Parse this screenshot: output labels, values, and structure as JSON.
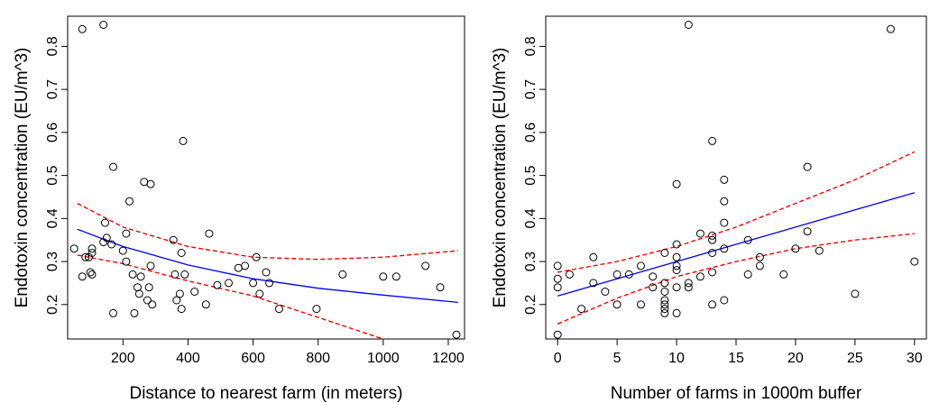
{
  "chart_data": [
    {
      "type": "scatter",
      "xlabel": "Distance to nearest farm (in meters)",
      "ylabel": "Endotoxin concentration (EU/m^3)",
      "xlim": [
        30,
        1250
      ],
      "ylim": [
        0.12,
        0.87
      ],
      "xticks": [
        200,
        400,
        600,
        800,
        1000,
        1200
      ],
      "yticks": [
        0.2,
        0.3,
        0.4,
        0.5,
        0.6,
        0.7,
        0.8
      ],
      "grid": false,
      "legend": "none",
      "colors": {
        "points": "#000000",
        "fit": "#0000ff",
        "ci": "#ff0000"
      },
      "points": [
        [
          75,
          0.84
        ],
        [
          140,
          0.85
        ],
        [
          50,
          0.33
        ],
        [
          75,
          0.265
        ],
        [
          85,
          0.31
        ],
        [
          95,
          0.31
        ],
        [
          105,
          0.32
        ],
        [
          105,
          0.27
        ],
        [
          100,
          0.275
        ],
        [
          105,
          0.33
        ],
        [
          145,
          0.39
        ],
        [
          150,
          0.355
        ],
        [
          140,
          0.345
        ],
        [
          165,
          0.34
        ],
        [
          170,
          0.52
        ],
        [
          170,
          0.18
        ],
        [
          200,
          0.325
        ],
        [
          210,
          0.365
        ],
        [
          210,
          0.3
        ],
        [
          220,
          0.44
        ],
        [
          230,
          0.27
        ],
        [
          235,
          0.18
        ],
        [
          245,
          0.24
        ],
        [
          250,
          0.225
        ],
        [
          255,
          0.265
        ],
        [
          265,
          0.485
        ],
        [
          275,
          0.21
        ],
        [
          280,
          0.24
        ],
        [
          285,
          0.48
        ],
        [
          285,
          0.29
        ],
        [
          290,
          0.2
        ],
        [
          355,
          0.35
        ],
        [
          360,
          0.27
        ],
        [
          365,
          0.21
        ],
        [
          375,
          0.225
        ],
        [
          380,
          0.32
        ],
        [
          380,
          0.19
        ],
        [
          385,
          0.58
        ],
        [
          390,
          0.27
        ],
        [
          420,
          0.23
        ],
        [
          455,
          0.2
        ],
        [
          465,
          0.365
        ],
        [
          490,
          0.245
        ],
        [
          525,
          0.25
        ],
        [
          555,
          0.285
        ],
        [
          575,
          0.29
        ],
        [
          600,
          0.25
        ],
        [
          610,
          0.31
        ],
        [
          620,
          0.225
        ],
        [
          640,
          0.275
        ],
        [
          650,
          0.25
        ],
        [
          680,
          0.19
        ],
        [
          795,
          0.19
        ],
        [
          875,
          0.27
        ],
        [
          1000,
          0.265
        ],
        [
          1040,
          0.265
        ],
        [
          1130,
          0.29
        ],
        [
          1175,
          0.24
        ],
        [
          1225,
          0.13
        ]
      ],
      "fit": {
        "x": [
          60,
          200,
          400,
          600,
          800,
          1000,
          1230
        ],
        "y": [
          0.375,
          0.335,
          0.292,
          0.26,
          0.238,
          0.222,
          0.205
        ]
      },
      "ci_upper": {
        "x": [
          60,
          200,
          400,
          600,
          800,
          1000,
          1230
        ],
        "y": [
          0.435,
          0.38,
          0.335,
          0.31,
          0.305,
          0.31,
          0.325
        ]
      },
      "ci_lower": {
        "x": [
          60,
          200,
          400,
          600,
          800,
          1000,
          1230
        ],
        "y": [
          0.315,
          0.295,
          0.255,
          0.22,
          0.17,
          0.12,
          0.085
        ]
      }
    },
    {
      "type": "scatter",
      "xlabel": "Number of farms in 1000m buffer",
      "ylabel": "Endotoxin concentration (EU/m^3)",
      "xlim": [
        -1,
        31
      ],
      "ylim": [
        0.12,
        0.87
      ],
      "xticks": [
        0,
        5,
        10,
        15,
        20,
        25,
        30
      ],
      "yticks": [
        0.2,
        0.3,
        0.4,
        0.5,
        0.6,
        0.7,
        0.8
      ],
      "grid": false,
      "legend": "none",
      "colors": {
        "points": "#000000",
        "fit": "#0000ff",
        "ci": "#ff0000"
      },
      "points": [
        [
          0,
          0.29
        ],
        [
          0,
          0.26
        ],
        [
          0,
          0.24
        ],
        [
          0,
          0.13
        ],
        [
          1,
          0.27
        ],
        [
          2,
          0.19
        ],
        [
          3,
          0.31
        ],
        [
          3,
          0.25
        ],
        [
          4,
          0.23
        ],
        [
          5,
          0.27
        ],
        [
          5,
          0.2
        ],
        [
          6,
          0.27
        ],
        [
          7,
          0.29
        ],
        [
          7,
          0.2
        ],
        [
          8,
          0.265
        ],
        [
          8,
          0.24
        ],
        [
          9,
          0.32
        ],
        [
          9,
          0.25
        ],
        [
          9,
          0.23
        ],
        [
          9,
          0.21
        ],
        [
          9,
          0.2
        ],
        [
          9,
          0.19
        ],
        [
          9,
          0.18
        ],
        [
          10,
          0.48
        ],
        [
          10,
          0.34
        ],
        [
          10,
          0.31
        ],
        [
          10,
          0.29
        ],
        [
          10,
          0.28
        ],
        [
          10,
          0.24
        ],
        [
          10,
          0.18
        ],
        [
          11,
          0.85
        ],
        [
          11,
          0.25
        ],
        [
          11,
          0.24
        ],
        [
          12,
          0.365
        ],
        [
          12,
          0.265
        ],
        [
          13,
          0.58
        ],
        [
          13,
          0.36
        ],
        [
          13,
          0.35
        ],
        [
          13,
          0.32
        ],
        [
          13,
          0.275
        ],
        [
          13,
          0.2
        ],
        [
          14,
          0.49
        ],
        [
          14,
          0.44
        ],
        [
          14,
          0.39
        ],
        [
          14,
          0.33
        ],
        [
          14,
          0.21
        ],
        [
          16,
          0.35
        ],
        [
          16,
          0.27
        ],
        [
          17,
          0.31
        ],
        [
          17,
          0.29
        ],
        [
          19,
          0.27
        ],
        [
          20,
          0.33
        ],
        [
          21,
          0.52
        ],
        [
          21,
          0.37
        ],
        [
          22,
          0.325
        ],
        [
          25,
          0.225
        ],
        [
          28,
          0.84
        ],
        [
          30,
          0.3
        ]
      ],
      "fit": {
        "x": [
          0,
          5,
          10,
          15,
          20,
          25,
          30
        ],
        "y": [
          0.22,
          0.26,
          0.3,
          0.34,
          0.38,
          0.42,
          0.46
        ]
      },
      "ci_upper": {
        "x": [
          0,
          5,
          10,
          15,
          20,
          25,
          30
        ],
        "y": [
          0.275,
          0.3,
          0.335,
          0.38,
          0.435,
          0.49,
          0.555
        ]
      },
      "ci_lower": {
        "x": [
          0,
          5,
          10,
          15,
          20,
          25,
          30
        ],
        "y": [
          0.155,
          0.215,
          0.265,
          0.3,
          0.33,
          0.35,
          0.365
        ]
      }
    }
  ]
}
